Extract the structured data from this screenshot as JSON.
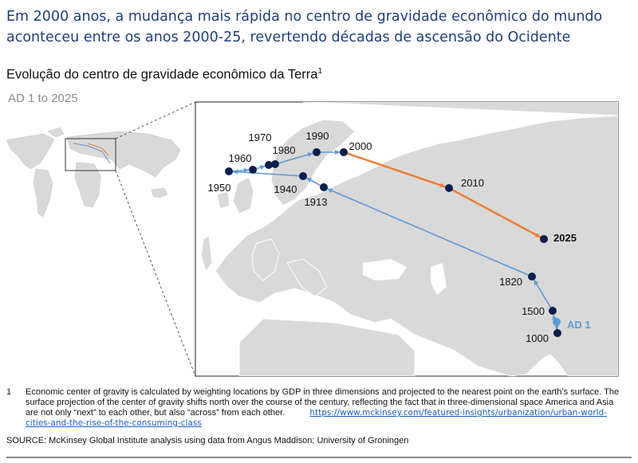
{
  "headline": "Em 2000 anos, a mudança mais rápida no centro de gravidade econômico do mundo aconteceu entre os anos 2000-25, revertendo décadas de ascensão do Ocidente",
  "subtitle": "Evolução do centro de gravidade econômico da Terra",
  "subtitle_sup": "1",
  "range_label": "AD 1 to 2025",
  "colors": {
    "headline": "#1f3f7a",
    "historical_path": "#5b9bd5",
    "recent_path": "#ed7d31",
    "point": "#0b1f4d",
    "ad1_point": "#5b9bd5",
    "land": "#d9d9d9"
  },
  "chart_data": {
    "type": "map-path",
    "title": "Evolução do centro de gravidade econômico da Terra",
    "subtitle": "AD 1 to 2025",
    "points": [
      {
        "label": "AD 1",
        "year": 1,
        "highlight": "light-blue"
      },
      {
        "label": "1000",
        "year": 1000
      },
      {
        "label": "1500",
        "year": 1500
      },
      {
        "label": "1820",
        "year": 1820
      },
      {
        "label": "1913",
        "year": 1913
      },
      {
        "label": "1940",
        "year": 1940
      },
      {
        "label": "1950",
        "year": 1950
      },
      {
        "label": "1960",
        "year": 1960
      },
      {
        "label": "1970",
        "year": 1970
      },
      {
        "label": "1980",
        "year": 1980
      },
      {
        "label": "1990",
        "year": 1990
      },
      {
        "label": "2000",
        "year": 2000
      },
      {
        "label": "2010",
        "year": 2010
      },
      {
        "label": "2025",
        "year": 2025,
        "bold": true
      }
    ],
    "segments": [
      {
        "from": "AD 1",
        "to": "2000",
        "color": "light-blue"
      },
      {
        "from": "2000",
        "to": "2025",
        "color": "orange"
      }
    ]
  },
  "footnote": {
    "number": "1",
    "text": "Economic center of gravity is calculated by weighting locations by GDP in three dimensions and projected to the nearest point on the earth’s surface. The surface projection of the center of gravity shifts north over the course of the century, reflecting the fact that in three-dimensional space America and Asia are not only “next” to each other, but also “across” from each other.",
    "link": "https://www.mckinsey.com/featured-insights/urbanization/urban-world-cities-and-the-rise-of-the-consuming-class"
  },
  "source": "SOURCE: McKinsey Global Institute analysis using data from Angus Maddison; University of Groningen"
}
